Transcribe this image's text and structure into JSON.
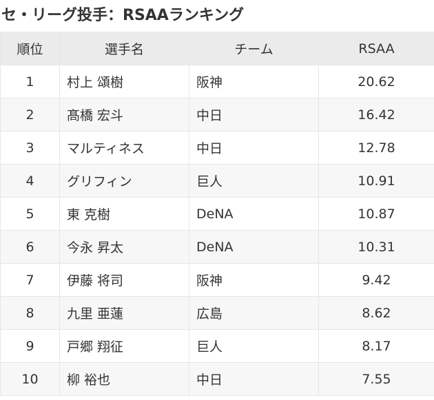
{
  "title": "セ・リーグ投手：RSAAランキング",
  "table": {
    "headers": {
      "rank": "順位",
      "player": "選手名",
      "team": "チーム",
      "rsaa": "RSAA"
    },
    "rows": [
      {
        "rank": "1",
        "player": "村上 頌樹",
        "team": "阪神",
        "rsaa": "20.62"
      },
      {
        "rank": "2",
        "player": "髙橋 宏斗",
        "team": "中日",
        "rsaa": "16.42"
      },
      {
        "rank": "3",
        "player": "マルティネス",
        "team": "中日",
        "rsaa": "12.78"
      },
      {
        "rank": "4",
        "player": "グリフィン",
        "team": "巨人",
        "rsaa": "10.91"
      },
      {
        "rank": "5",
        "player": "東 克樹",
        "team": "DeNA",
        "rsaa": "10.87"
      },
      {
        "rank": "6",
        "player": "今永 昇太",
        "team": "DeNA",
        "rsaa": "10.31"
      },
      {
        "rank": "7",
        "player": "伊藤 将司",
        "team": "阪神",
        "rsaa": "9.42"
      },
      {
        "rank": "8",
        "player": "九里 亜蓮",
        "team": "広島",
        "rsaa": "8.62"
      },
      {
        "rank": "9",
        "player": "戸郷 翔征",
        "team": "巨人",
        "rsaa": "8.17"
      },
      {
        "rank": "10",
        "player": "柳 裕也",
        "team": "中日",
        "rsaa": "7.55"
      }
    ]
  }
}
